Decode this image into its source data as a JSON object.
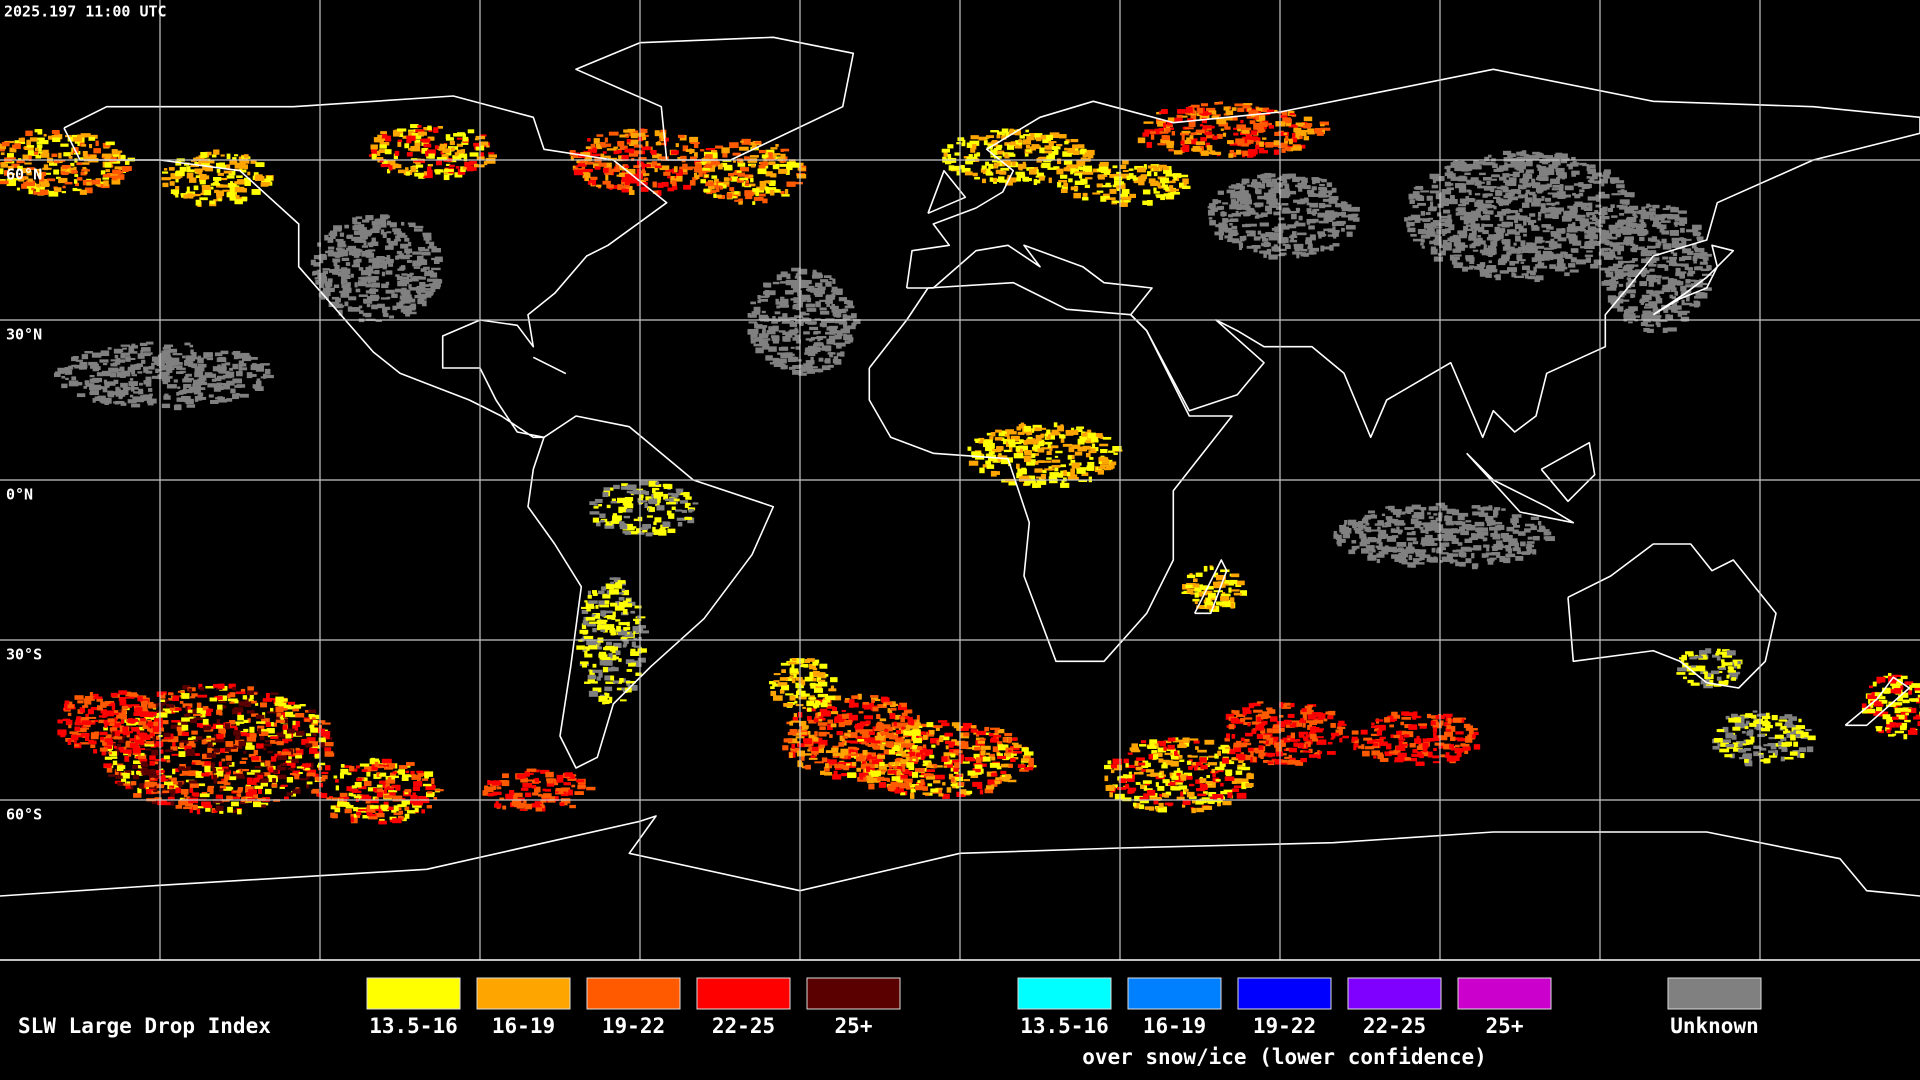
{
  "header": {
    "timestamp": "2025.197 11:00 UTC"
  },
  "map": {
    "latitude_labels": [
      "60°N",
      "30°N",
      "0°N",
      "30°S",
      "60°S"
    ]
  },
  "legend": {
    "title": "SLW Large Drop Index",
    "groups": [
      {
        "items": [
          {
            "label": "13.5-16",
            "color": "#ffff00"
          },
          {
            "label": "16-19",
            "color": "#ffa500"
          },
          {
            "label": "19-22",
            "color": "#ff5a00"
          },
          {
            "label": "22-25",
            "color": "#ff0000"
          },
          {
            "label": "25+",
            "color": "#5a0000"
          }
        ]
      },
      {
        "items": [
          {
            "label": "13.5-16",
            "color": "#00ffff"
          },
          {
            "label": "16-19",
            "color": "#0080ff"
          },
          {
            "label": "19-22",
            "color": "#0000ff"
          },
          {
            "label": "22-25",
            "color": "#8000ff"
          },
          {
            "label": "25+",
            "color": "#cc00cc"
          }
        ],
        "caption": "over snow/ice (lower confidence)"
      },
      {
        "items": [
          {
            "label": "Unknown",
            "color": "#808080"
          }
        ]
      }
    ]
  }
}
